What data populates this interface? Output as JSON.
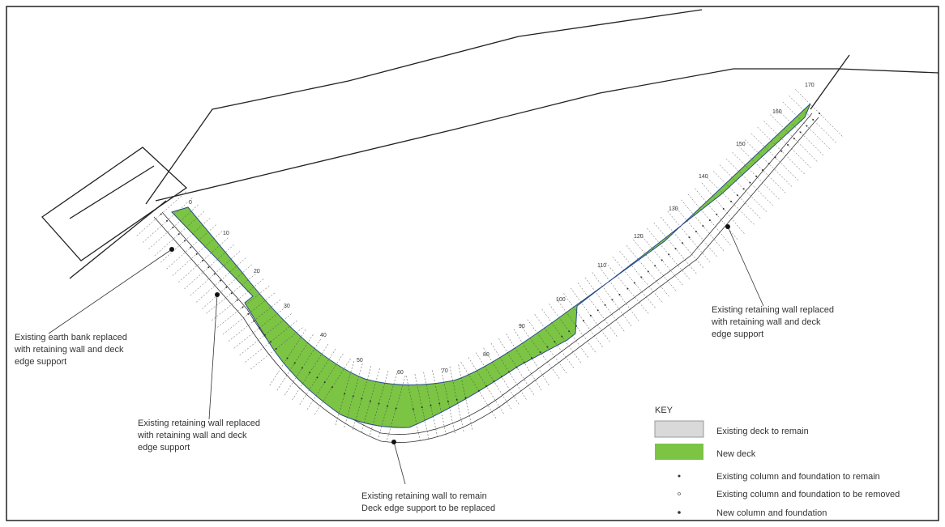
{
  "chainages": [
    "0",
    "10",
    "20",
    "30",
    "40",
    "50",
    "60",
    "70",
    "80",
    "90",
    "100",
    "110",
    "120",
    "130",
    "140",
    "150",
    "160",
    "170"
  ],
  "annotations": [
    {
      "lines": [
        "Existing earth bank replaced",
        "with retaining wall and deck",
        "edge support"
      ]
    },
    {
      "lines": [
        "Existing retaining wall replaced",
        "with retaining wall and deck",
        "edge support"
      ]
    },
    {
      "lines": [
        "Existing retaining wall to remain",
        "Deck edge support to be replaced"
      ]
    },
    {
      "lines": [
        "Existing retaining wall replaced",
        "with retaining wall and deck",
        "edge support"
      ]
    }
  ],
  "key": {
    "title": "KEY",
    "items": [
      "Existing deck to remain",
      "New deck",
      "Existing column and foundation to remain",
      "Existing column and foundation to be removed",
      "New column and foundation"
    ]
  }
}
